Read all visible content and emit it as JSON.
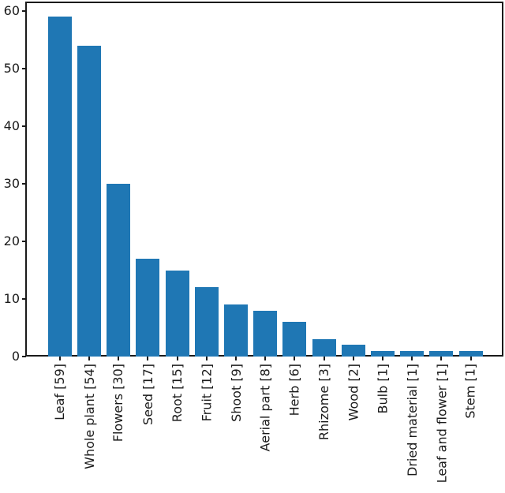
{
  "chart_data": {
    "type": "bar",
    "categories": [
      "Leaf [59]",
      "Whole plant [54]",
      "Flowers [30]",
      "Seed [17]",
      "Root [15]",
      "Fruit [12]",
      "Shoot [9]",
      "Aerial part [8]",
      "Herb [6]",
      "Rhizome [3]",
      "Wood [2]",
      "Bulb [1]",
      "Dried material [1]",
      "Leaf and flower [1]",
      "Stem [1]"
    ],
    "values": [
      59,
      54,
      30,
      17,
      15,
      12,
      9,
      8,
      6,
      3,
      2,
      1,
      1,
      1,
      1
    ],
    "title": "",
    "xlabel": "",
    "ylabel": "",
    "ylim": [
      0,
      61.5
    ],
    "yticks": [
      0,
      10,
      20,
      30,
      40,
      50,
      60
    ],
    "x_tick_rotation": 90,
    "grid": false,
    "legend": null,
    "bar_color": "#1f77b4",
    "axis_color": "#1a1a1a",
    "text_color": "#1a1a1a",
    "background_color": "#ffffff"
  }
}
